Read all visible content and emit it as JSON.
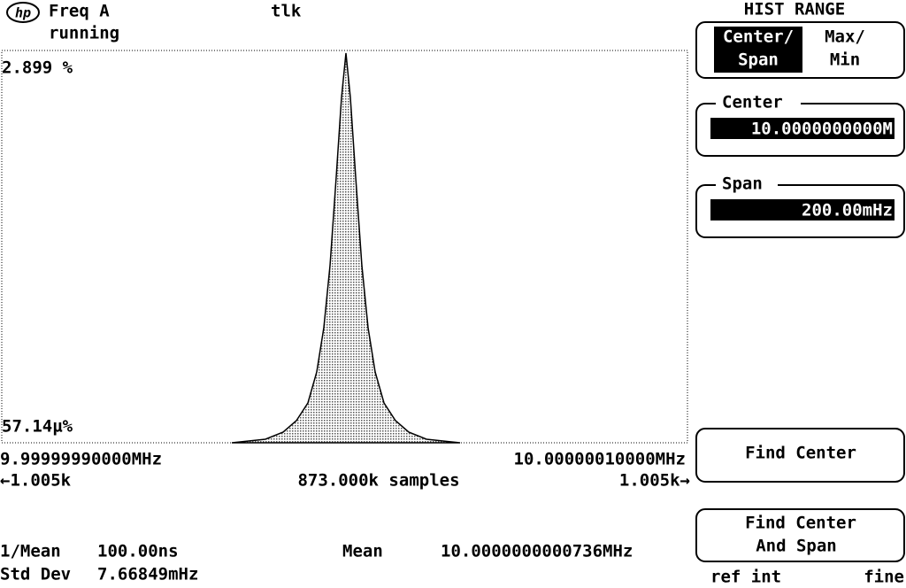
{
  "header": {
    "channel": "Freq A",
    "status": "running",
    "remote": "tlk",
    "menu_title": "HIST RANGE",
    "logo": "hp"
  },
  "plot": {
    "top_label": "2.899 %",
    "bottom_label": "57.14µ%",
    "x_left": "9.99999990000MHz",
    "x_right": "10.00000010000MHz",
    "bins_left": "←1.005k",
    "samples": "873.000k samples",
    "bins_right": "1.005k→"
  },
  "softkeys": {
    "mode_active": [
      "Center/",
      "Span"
    ],
    "mode_other": [
      "Max/",
      "Min"
    ],
    "center_label": "Center",
    "center_value": "10.0000000000M",
    "span_label": "Span",
    "span_value": "200.00mHz",
    "find_center": "Find Center",
    "find_center_span": [
      "Find Center",
      "And Span"
    ]
  },
  "footer": {
    "inv_mean_label": "1/Mean",
    "inv_mean_value": "100.00ns",
    "mean_label": "Mean",
    "mean_value": "10.0000000000736MHz",
    "std_label": "Std Dev",
    "std_value": "7.66849mHz",
    "ref": "ref int",
    "fine": "fine"
  }
}
